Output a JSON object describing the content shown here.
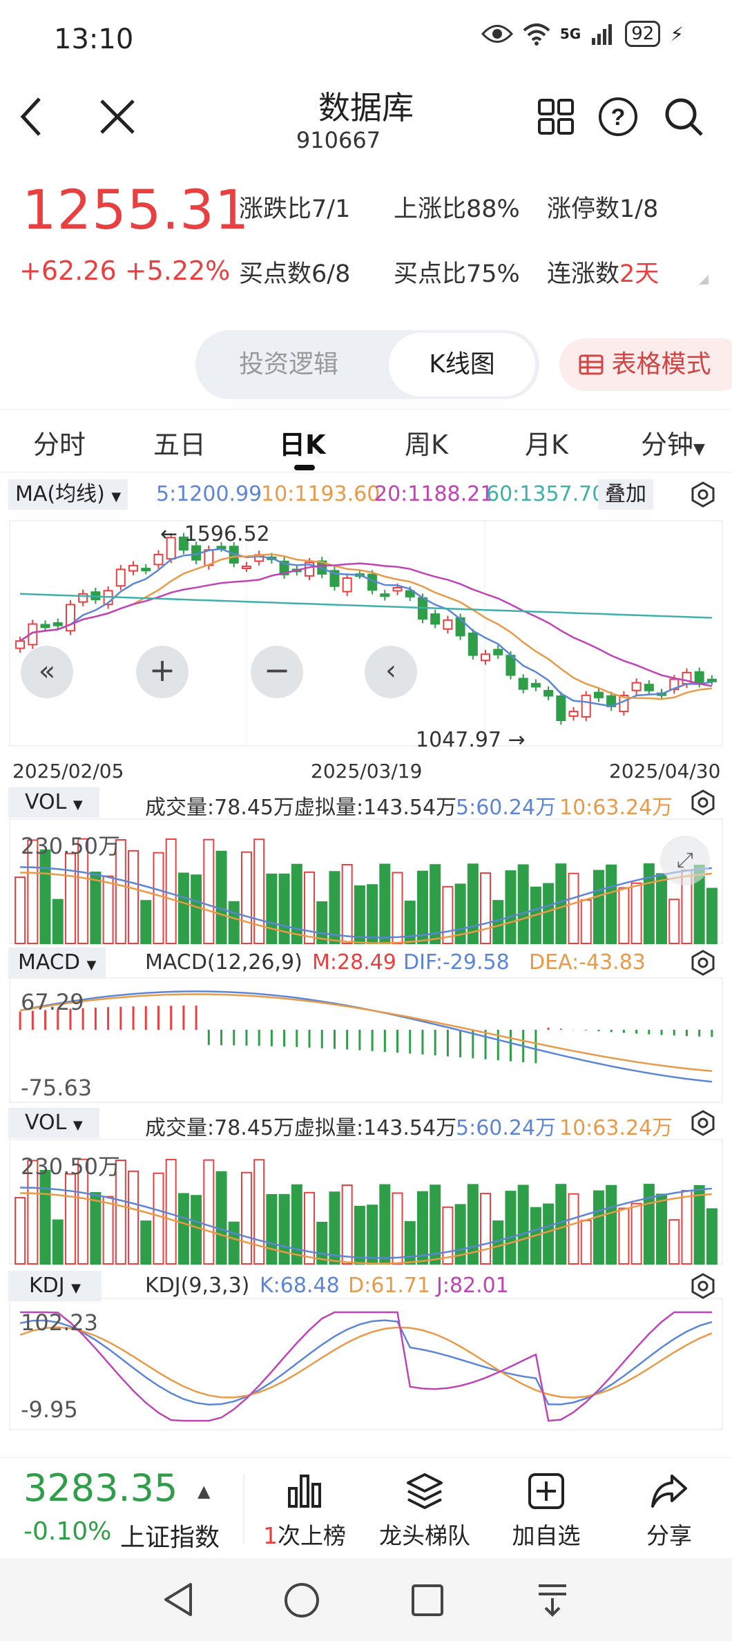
{
  "status": {
    "time": "13:10",
    "signal": "5G",
    "battery": "92"
  },
  "nav": {
    "title": "数据库",
    "code": "910667"
  },
  "quote": {
    "price": "1255.31",
    "change": "+62.26",
    "pct": "+5.22%",
    "stats": [
      {
        "label": "涨跌比",
        "value": "7/1"
      },
      {
        "label": "上涨比",
        "value": "88%"
      },
      {
        "label": "涨停数",
        "value": "1/8"
      },
      {
        "label": "买点数",
        "value": "6/8"
      },
      {
        "label": "买点比",
        "value": "75%"
      },
      {
        "label": "连涨数",
        "value": "2天"
      }
    ]
  },
  "segments": {
    "left": "投资逻辑",
    "right": "K线图",
    "table_mode": "表格模式"
  },
  "tabs": [
    "分时",
    "五日",
    "日K",
    "周K",
    "月K",
    "分钟"
  ],
  "ma": {
    "label": "MA(均线)",
    "ma5": "5:1200.99",
    "ma10": "10:1193.60",
    "ma20": "20:1188.21",
    "ma60": "60:1357.70",
    "overlay": "叠加",
    "high_label": "1596.52",
    "low_label": "1047.97",
    "dates": [
      "2025/02/05",
      "2025/03/19",
      "2025/04/30"
    ]
  },
  "vol": {
    "label": "VOL",
    "amount": "成交量:78.45万",
    "virtual": "虚拟量:143.54万",
    "v5": "5:60.24万",
    "v10": "10:63.24万",
    "max": "230.50万"
  },
  "macd": {
    "label": "MACD",
    "params": "MACD(12,26,9)",
    "m": "M:28.49",
    "dif": "DIF:-29.58",
    "dea": "DEA:-43.83",
    "top": "67.29",
    "bottom": "-75.63"
  },
  "kdj": {
    "label": "KDJ",
    "params": "KDJ(9,3,3)",
    "k": "K:68.48",
    "d": "D:61.71",
    "j": "J:82.01",
    "top": "102.23",
    "bottom": "-9.95"
  },
  "bottom": {
    "index_value": "3283.35",
    "index_change": "-0.10%",
    "index_name": "上证指数",
    "btn1_num": "1",
    "btn1": "次上榜",
    "btn2": "龙头梯队",
    "btn3": "加自选",
    "btn4": "分享"
  },
  "colors": {
    "up": "#e84040",
    "down": "#2e9e48",
    "ma5": "#5b86d6",
    "ma10": "#e89a48",
    "ma20": "#c043b6",
    "ma60": "#3fb0a8"
  }
}
